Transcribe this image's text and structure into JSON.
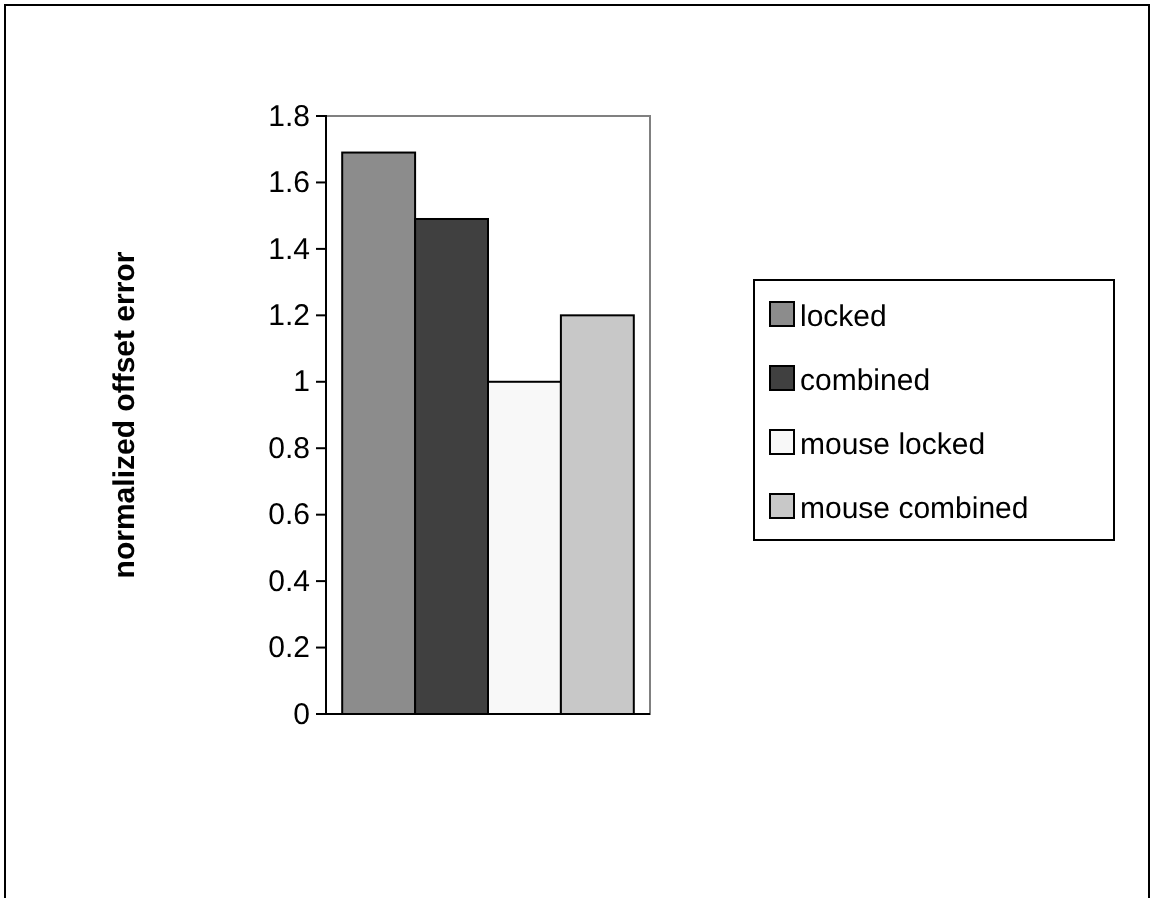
{
  "chart_data": {
    "type": "bar",
    "ylabel": "normalized offset error",
    "categories": [
      null
    ],
    "series": [
      {
        "name": "locked",
        "color": "#8c8c8c",
        "values": [
          1.69
        ]
      },
      {
        "name": "combined",
        "color": "#404040",
        "values": [
          1.49
        ]
      },
      {
        "name": "mouse locked",
        "color": "#f8f8f8",
        "values": [
          1.0
        ]
      },
      {
        "name": "mouse combined",
        "color": "#c8c8c8",
        "values": [
          1.2
        ]
      }
    ],
    "ylim": [
      0,
      1.8
    ],
    "yticks": [
      0,
      0.2,
      0.4,
      0.6,
      0.8,
      1,
      1.2,
      1.4,
      1.6,
      1.8
    ],
    "grid": false,
    "legend": "right"
  }
}
